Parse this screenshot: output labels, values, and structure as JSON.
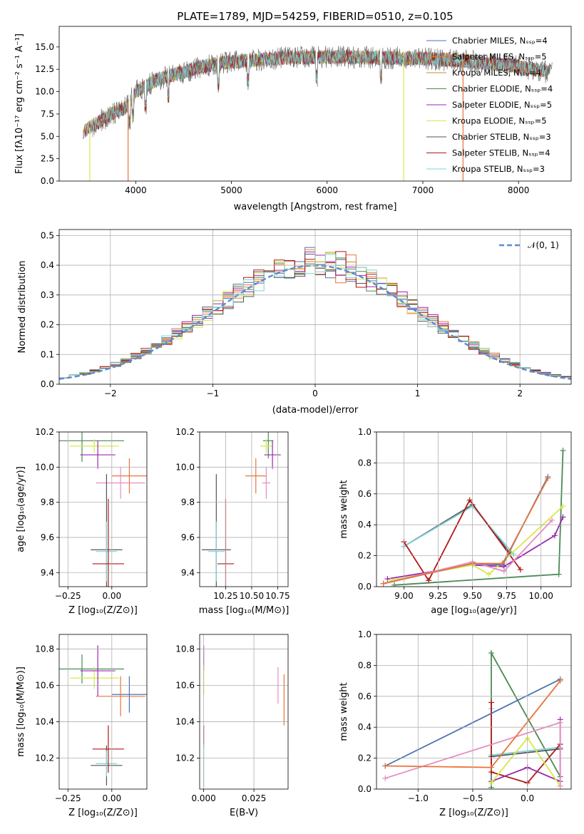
{
  "chart_data": [
    {
      "id": "spectrum",
      "type": "line",
      "title": "PLATE=1789, MJD=54259, FIBERID=0510, z=0.105",
      "xlabel": "wavelength [Angstrom, rest frame]",
      "ylabel": "Flux [fλ10⁻¹⁷ erg cm⁻² s⁻¹ A⁻¹]",
      "xlim": [
        3200,
        8550
      ],
      "ylim": [
        0,
        17.3
      ],
      "xticks": [
        4000,
        5000,
        6000,
        7000,
        8000
      ],
      "yticks": [
        0.0,
        2.5,
        5.0,
        7.5,
        10.0,
        12.5,
        15.0
      ],
      "grid": false,
      "legend_position": "top-right",
      "continuum": {
        "x": [
          3450,
          3550,
          3700,
          3800,
          3900,
          4000,
          4100,
          4200,
          4300,
          4400,
          4500,
          4700,
          4900,
          5200,
          5600,
          6000,
          6500,
          7000,
          7500,
          8000,
          8300
        ],
        "y": [
          5.5,
          6.2,
          7.2,
          7.8,
          8.2,
          10.0,
          10.6,
          11.2,
          11.6,
          11.9,
          12.2,
          12.8,
          13.2,
          13.5,
          13.8,
          13.9,
          13.8,
          13.7,
          13.4,
          12.8,
          12.2
        ]
      },
      "series": [
        {
          "name": "Chabrier MILES, Nₛₛₚ=4",
          "color": "#4c72b0"
        },
        {
          "name": "Salpeter MILES, Nₛₛₚ=5",
          "color": "#e8743b"
        },
        {
          "name": "Kroupa MILES, Nₛₛₚ=4",
          "color": "#c78b3a"
        },
        {
          "name": "Chabrier ELODIE, Nₛₛₚ=4",
          "color": "#4a8a55"
        },
        {
          "name": "Salpeter ELODIE, Nₛₛₚ=5",
          "color": "#9b27b0"
        },
        {
          "name": "Kroupa ELODIE, Nₛₛₚ=5",
          "color": "#d8e84a"
        },
        {
          "name": "Chabrier STELIB, Nₛₛₚ=3",
          "color": "#555555"
        },
        {
          "name": "Salpeter STELIB, Nₛₛₚ=4",
          "color": "#b01818"
        },
        {
          "name": "Kroupa STELIB, Nₛₛₚ=3",
          "color": "#7fd3d8"
        }
      ]
    },
    {
      "id": "residuals",
      "type": "line",
      "xlabel": "(data-model)/error",
      "ylabel": "Normed distribution",
      "xlim": [
        -2.5,
        2.5
      ],
      "ylim": [
        0,
        0.52
      ],
      "xticks": [
        -2,
        -1,
        0,
        1,
        2
      ],
      "xtick_labels": [
        "−2",
        "−1",
        "0",
        "1",
        "2"
      ],
      "yticks": [
        0.0,
        0.1,
        0.2,
        0.3,
        0.4,
        0.5
      ],
      "grid": true,
      "bin_width": 0.1,
      "legend_position": "top-right",
      "gaussian_label": "𝒩(0, 1)",
      "gaussian_color": "#5b8bd0"
    },
    {
      "id": "age-vs-z",
      "type": "scatter",
      "xlabel": "Z [log₁₀(Z/Z⊙)]",
      "ylabel": "age  [log₁₀(age/yr)]",
      "xlim": [
        -0.3,
        0.2
      ],
      "ylim": [
        9.32,
        10.2
      ],
      "xticks": [
        -0.25,
        0.0
      ],
      "xtick_labels": [
        "−0.25",
        "0.00"
      ],
      "yticks": [
        9.4,
        9.6,
        9.8,
        10.0,
        10.2
      ],
      "grid": true,
      "points": [
        {
          "x": -0.17,
          "y": 10.15,
          "xerr": 0.24,
          "yerr": 0.12,
          "color": "#4a8a55"
        },
        {
          "x": -0.1,
          "y": 10.12,
          "xerr": 0.14,
          "yerr": 0.04,
          "color": "#d8e84a"
        },
        {
          "x": -0.08,
          "y": 10.07,
          "xerr": 0.1,
          "yerr": 0.08,
          "color": "#9b27b0"
        },
        {
          "x": 0.1,
          "y": 9.95,
          "xerr": 0.1,
          "yerr": 0.1,
          "color": "#e8743b"
        },
        {
          "x": 0.05,
          "y": 9.91,
          "xerr": 0.14,
          "yerr": 0.09,
          "color": "#e88cc0"
        },
        {
          "x": -0.03,
          "y": 9.53,
          "xerr": 0.09,
          "yerr": 0.43,
          "color": "#555555"
        },
        {
          "x": -0.03,
          "y": 9.52,
          "xerr": 0.06,
          "yerr": 0.17,
          "color": "#7fd3d8"
        },
        {
          "x": -0.02,
          "y": 9.45,
          "xerr": 0.09,
          "yerr": 0.37,
          "color": "#b01818"
        }
      ]
    },
    {
      "id": "age-vs-mass",
      "type": "scatter",
      "xlabel": "mass [log₁₀(M/M⊙)]",
      "xlim": [
        10.0,
        10.85
      ],
      "ylim": [
        9.32,
        10.2
      ],
      "xticks": [
        10.25,
        10.5,
        10.75
      ],
      "xtick_labels": [
        "10.25",
        "10.50",
        "10.75"
      ],
      "yticks": [
        9.4,
        9.6,
        9.8,
        10.0,
        10.2
      ],
      "grid": true,
      "points": [
        {
          "x": 10.66,
          "y": 10.15,
          "xerr": 0.05,
          "yerr": 0.1,
          "color": "#4a8a55"
        },
        {
          "x": 10.64,
          "y": 10.12,
          "xerr": 0.06,
          "yerr": 0.04,
          "color": "#d8e84a"
        },
        {
          "x": 10.7,
          "y": 10.07,
          "xerr": 0.08,
          "yerr": 0.08,
          "color": "#9b27b0"
        },
        {
          "x": 10.54,
          "y": 9.95,
          "xerr": 0.1,
          "yerr": 0.1,
          "color": "#e8743b"
        },
        {
          "x": 10.64,
          "y": 9.91,
          "xerr": 0.04,
          "yerr": 0.09,
          "color": "#e88cc0"
        },
        {
          "x": 10.16,
          "y": 9.53,
          "xerr": 0.14,
          "yerr": 0.43,
          "color": "#555555"
        },
        {
          "x": 10.16,
          "y": 9.52,
          "xerr": 0.08,
          "yerr": 0.17,
          "color": "#7fd3d8"
        },
        {
          "x": 10.25,
          "y": 9.45,
          "xerr": 0.08,
          "yerr": 0.37,
          "color": "#b01818"
        }
      ]
    },
    {
      "id": "weight-vs-age",
      "type": "line",
      "xlabel": "age  [log₁₀(age/yr)]",
      "ylabel": "mass weight",
      "xlim": [
        8.8,
        10.22
      ],
      "ylim": [
        0,
        1.0
      ],
      "xticks": [
        9.0,
        9.25,
        9.5,
        9.75,
        10.0
      ],
      "xtick_labels": [
        "9.00",
        "9.25",
        "9.50",
        "9.75",
        "10.00"
      ],
      "yticks": [
        0.0,
        0.2,
        0.4,
        0.6,
        0.8,
        1.0
      ],
      "grid": true,
      "series": [
        {
          "color": "#4a8a55",
          "x": [
            8.93,
            10.13,
            10.16
          ],
          "y": [
            0.01,
            0.08,
            0.88
          ]
        },
        {
          "color": "#555555",
          "x": [
            9.0,
            9.5,
            9.78
          ],
          "y": [
            0.26,
            0.53,
            0.21
          ]
        },
        {
          "color": "#7fd3d8",
          "x": [
            9.0,
            9.5,
            9.8
          ],
          "y": [
            0.26,
            0.52,
            0.21
          ]
        },
        {
          "color": "#b01818",
          "x": [
            9.0,
            9.18,
            9.48,
            9.85
          ],
          "y": [
            0.29,
            0.04,
            0.56,
            0.11
          ]
        },
        {
          "color": "#9b27b0",
          "x": [
            8.88,
            9.5,
            9.73,
            10.1,
            10.16
          ],
          "y": [
            0.05,
            0.14,
            0.13,
            0.33,
            0.45
          ]
        },
        {
          "color": "#d8e84a",
          "x": [
            8.9,
            9.5,
            9.62,
            10.16
          ],
          "y": [
            0.04,
            0.14,
            0.08,
            0.52
          ]
        },
        {
          "color": "#e88cc0",
          "x": [
            8.85,
            9.5,
            9.73,
            10.08
          ],
          "y": [
            0.02,
            0.16,
            0.1,
            0.43
          ]
        },
        {
          "color": "#4c72b0",
          "x": [
            8.85,
            9.5,
            9.72,
            10.05
          ],
          "y": [
            0.02,
            0.15,
            0.14,
            0.71
          ]
        },
        {
          "color": "#e8743b",
          "x": [
            8.85,
            9.5,
            9.72,
            10.05
          ],
          "y": [
            0.02,
            0.15,
            0.15,
            0.7
          ]
        }
      ]
    },
    {
      "id": "mass-vs-z",
      "type": "scatter",
      "xlabel": "Z [log₁₀(Z/Z⊙)]",
      "ylabel": "mass [log₁₀(M/M⊙)]",
      "xlim": [
        -0.3,
        0.2
      ],
      "ylim": [
        10.03,
        10.88
      ],
      "xticks": [
        -0.25,
        0.0
      ],
      "xtick_labels": [
        "−0.25",
        "0.00"
      ],
      "yticks": [
        10.2,
        10.4,
        10.6,
        10.8
      ],
      "grid": true,
      "points": [
        {
          "x": -0.17,
          "y": 10.69,
          "xerr": 0.24,
          "yerr": 0.08,
          "color": "#4a8a55"
        },
        {
          "x": -0.1,
          "y": 10.64,
          "xerr": 0.14,
          "yerr": 0.06,
          "color": "#d8e84a"
        },
        {
          "x": -0.08,
          "y": 10.68,
          "xerr": 0.1,
          "yerr": 0.14,
          "color": "#9b27b0"
        },
        {
          "x": 0.1,
          "y": 10.55,
          "xerr": 0.1,
          "yerr": 0.1,
          "color": "#4c72b0"
        },
        {
          "x": 0.05,
          "y": 10.54,
          "xerr": 0.14,
          "yerr": 0.11,
          "color": "#e8743b"
        },
        {
          "x": -0.03,
          "y": 10.16,
          "xerr": 0.09,
          "yerr": 0.11,
          "color": "#555555"
        },
        {
          "x": -0.03,
          "y": 10.17,
          "xerr": 0.06,
          "yerr": 0.07,
          "color": "#7fd3d8"
        },
        {
          "x": -0.02,
          "y": 10.25,
          "xerr": 0.09,
          "yerr": 0.13,
          "color": "#b01818"
        }
      ]
    },
    {
      "id": "mass-vs-ebv",
      "type": "scatter",
      "xlabel": "E(B-V)",
      "xlim": [
        -0.002,
        0.042
      ],
      "ylim": [
        10.03,
        10.88
      ],
      "xticks": [
        0.0,
        0.025
      ],
      "xtick_labels": [
        "0.000",
        "0.025"
      ],
      "yticks": [
        10.2,
        10.4,
        10.6,
        10.8
      ],
      "grid": true,
      "points": [
        {
          "x": 0.0,
          "y": 10.75,
          "xerr": 0,
          "yerr": 0.07,
          "color": "#9b27b0"
        },
        {
          "x": 0.0,
          "y": 10.63,
          "xerr": 0,
          "yerr": 0.08,
          "color": "#d8e84a"
        },
        {
          "x": 0.0,
          "y": 10.32,
          "xerr": 0,
          "yerr": 0.06,
          "color": "#b01818"
        },
        {
          "x": 0.0,
          "y": 10.16,
          "xerr": 0,
          "yerr": 0.12,
          "color": "#7fd3d8"
        },
        {
          "x": 0.037,
          "y": 10.6,
          "xerr": 0,
          "yerr": 0.1,
          "color": "#e88cc0"
        },
        {
          "x": 0.04,
          "y": 10.52,
          "xerr": 0,
          "yerr": 0.14,
          "color": "#e8743b"
        }
      ]
    },
    {
      "id": "weight-vs-z",
      "type": "line",
      "xlabel": "Z [log₁₀(Z/Z⊙)]",
      "ylabel": "mass weight",
      "xlim": [
        -1.38,
        0.4
      ],
      "ylim": [
        0,
        1.0
      ],
      "xticks": [
        -1.0,
        -0.5,
        0.0
      ],
      "xtick_labels": [
        "−1.0",
        "−0.5",
        "0.0"
      ],
      "yticks": [
        0.0,
        0.2,
        0.4,
        0.6,
        0.8,
        1.0
      ],
      "grid": true,
      "series": [
        {
          "color": "#4a8a55",
          "x": [
            -0.33,
            -0.33,
            0.3
          ],
          "y": [
            0.01,
            0.88,
            0.08
          ]
        },
        {
          "color": "#555555",
          "x": [
            -0.33,
            0.3
          ],
          "y": [
            0.21,
            0.26
          ]
        },
        {
          "color": "#7fd3d8",
          "x": [
            -0.33,
            -0.33,
            0.3
          ],
          "y": [
            0.52,
            0.22,
            0.27
          ]
        },
        {
          "color": "#b01818",
          "x": [
            -0.33,
            -0.33,
            0.0,
            0.3
          ],
          "y": [
            0.56,
            0.11,
            0.04,
            0.29
          ]
        },
        {
          "color": "#9b27b0",
          "x": [
            -0.33,
            0.0,
            0.3,
            0.3
          ],
          "y": [
            0.05,
            0.14,
            0.05,
            0.45
          ]
        },
        {
          "color": "#d8e84a",
          "x": [
            -0.33,
            0.0,
            0.3
          ],
          "y": [
            0.04,
            0.33,
            0.02
          ]
        },
        {
          "color": "#e88cc0",
          "x": [
            -1.3,
            0.3,
            0.3
          ],
          "y": [
            0.07,
            0.43,
            0.02
          ]
        },
        {
          "color": "#4c72b0",
          "x": [
            -1.3,
            0.3
          ],
          "y": [
            0.15,
            0.71
          ]
        },
        {
          "color": "#e8743b",
          "x": [
            -1.3,
            -0.33,
            0.3
          ],
          "y": [
            0.15,
            0.14,
            0.7
          ]
        }
      ]
    }
  ]
}
